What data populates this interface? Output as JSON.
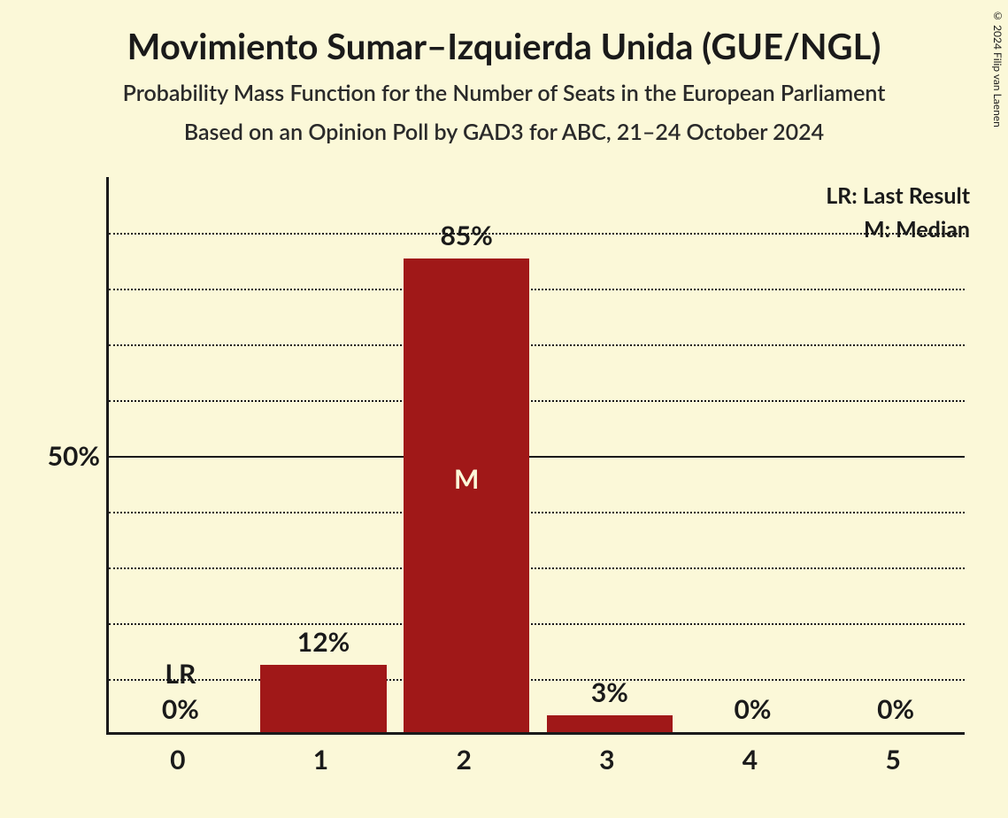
{
  "title": "Movimiento Sumar–Izquierda Unida (GUE/NGL)",
  "subtitle1": "Probability Mass Function for the Number of Seats in the European Parliament",
  "subtitle2": "Based on an Opinion Poll by GAD3 for ABC, 21–24 October 2024",
  "copyright": "© 2024 Filip van Laenen",
  "legend": {
    "lr": "LR: Last Result",
    "m": "M: Median"
  },
  "chart": {
    "type": "bar",
    "background_color": "#fbf8d8",
    "bar_color": "#a01818",
    "axis_color": "#1a1a1a",
    "grid_color": "#1a1a1a",
    "text_color": "#1a1a1a",
    "median_text_color": "#fbf8d8",
    "ylim": [
      0,
      100
    ],
    "ytick_major": 50,
    "ytick_minor": 10,
    "y_label_50": "50%",
    "categories": [
      "0",
      "1",
      "2",
      "3",
      "4",
      "5"
    ],
    "values": [
      0,
      12,
      85,
      3,
      0,
      0
    ],
    "value_labels": [
      "0%",
      "12%",
      "85%",
      "3%",
      "0%",
      "0%"
    ],
    "lr_index": 0,
    "lr_marker": "LR",
    "median_index": 2,
    "median_marker": "M",
    "title_fontsize": 40,
    "subtitle_fontsize": 25,
    "label_fontsize": 30,
    "bar_width_ratio": 0.88
  }
}
